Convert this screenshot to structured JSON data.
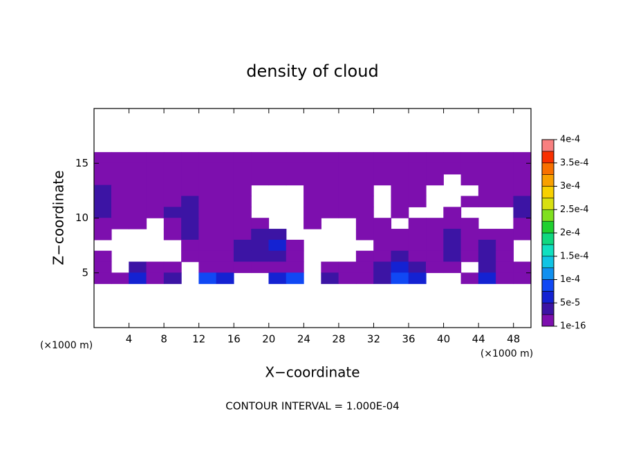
{
  "chart_data": {
    "type": "contour",
    "title": "density of cloud",
    "x_label": "X−coordinate",
    "y_label": "Z−coordinate",
    "x_unit": "(×1000 m)",
    "y_unit": "(×1000 m)",
    "note": "CONTOUR INTERVAL = 1.000E-04",
    "xlim": [
      0,
      50
    ],
    "ylim": [
      0,
      20
    ],
    "xticks": [
      4,
      8,
      12,
      16,
      20,
      24,
      28,
      32,
      36,
      40,
      44,
      48
    ],
    "yticks": [
      5,
      10,
      15
    ],
    "x": [
      1,
      3,
      5,
      7,
      9,
      11,
      13,
      15,
      17,
      19,
      21,
      23,
      25,
      27,
      29,
      31,
      33,
      35,
      37,
      39,
      41,
      43,
      45,
      47,
      49
    ],
    "z_levels": [
      15.5,
      14.5,
      13.5,
      12.5,
      11.5,
      10.5,
      9.5,
      8.5,
      7.5,
      6.5,
      5.5,
      4.5
    ],
    "z": [
      [
        1e-16,
        1e-16,
        1e-16,
        1e-16,
        1e-16,
        1e-16,
        1e-16,
        1e-16,
        1e-16,
        1e-16,
        1e-16,
        1e-16,
        1e-16,
        1e-16,
        1e-16,
        1e-16,
        1e-16,
        1e-16,
        1e-16,
        1e-16,
        1e-16,
        1e-16,
        1e-16,
        1e-16,
        1e-16
      ],
      [
        1e-16,
        1e-16,
        1e-16,
        1e-16,
        1e-16,
        1e-16,
        1e-16,
        1e-16,
        1e-16,
        1e-16,
        1e-16,
        1e-16,
        1e-16,
        1e-16,
        1e-16,
        1e-16,
        1e-16,
        1e-16,
        1e-16,
        1e-16,
        1e-16,
        1e-16,
        1e-16,
        1e-16,
        1e-16
      ],
      [
        1e-16,
        1e-16,
        1e-16,
        1e-16,
        1e-16,
        1e-16,
        1e-16,
        1e-16,
        1e-16,
        1e-16,
        1e-16,
        1e-16,
        1e-16,
        1e-16,
        1e-16,
        1e-16,
        1e-16,
        1e-16,
        1e-16,
        1e-16,
        null,
        1e-16,
        1e-16,
        1e-16,
        1e-16
      ],
      [
        3e-05,
        1e-16,
        1e-16,
        1e-16,
        1e-16,
        1e-16,
        1e-16,
        1e-16,
        1e-16,
        null,
        null,
        null,
        1e-16,
        1e-16,
        1e-16,
        1e-16,
        null,
        1e-16,
        1e-16,
        null,
        null,
        null,
        1e-16,
        1e-16,
        1e-16
      ],
      [
        3e-05,
        1e-16,
        1e-16,
        1e-16,
        1e-16,
        3e-05,
        1e-16,
        1e-16,
        1e-16,
        null,
        null,
        null,
        1e-16,
        1e-16,
        1e-16,
        1e-16,
        null,
        1e-16,
        1e-16,
        null,
        null,
        1e-16,
        1e-16,
        1e-16,
        3e-05
      ],
      [
        3e-05,
        1e-16,
        1e-16,
        1e-16,
        3e-05,
        3e-05,
        1e-16,
        1e-16,
        1e-16,
        null,
        null,
        null,
        1e-16,
        1e-16,
        1e-16,
        1e-16,
        null,
        1e-16,
        null,
        null,
        1e-16,
        null,
        null,
        null,
        3e-05
      ],
      [
        1e-16,
        1e-16,
        1e-16,
        null,
        1e-16,
        3e-05,
        1e-16,
        1e-16,
        1e-16,
        1e-16,
        null,
        null,
        1e-16,
        null,
        null,
        1e-16,
        1e-16,
        null,
        1e-16,
        1e-16,
        1e-16,
        1e-16,
        null,
        null,
        1e-16
      ],
      [
        1e-16,
        null,
        null,
        null,
        1e-16,
        3e-05,
        1e-16,
        1e-16,
        1e-16,
        3e-05,
        3e-05,
        null,
        null,
        null,
        null,
        1e-16,
        1e-16,
        1e-16,
        1e-16,
        1e-16,
        3e-05,
        1e-16,
        1e-16,
        1e-16,
        1e-16
      ],
      [
        null,
        null,
        null,
        null,
        null,
        1e-16,
        1e-16,
        1e-16,
        3e-05,
        3e-05,
        6e-05,
        1e-16,
        null,
        null,
        null,
        null,
        1e-16,
        1e-16,
        1e-16,
        1e-16,
        3e-05,
        1e-16,
        3e-05,
        1e-16,
        null
      ],
      [
        1e-16,
        null,
        null,
        null,
        null,
        1e-16,
        1e-16,
        1e-16,
        3e-05,
        3e-05,
        3e-05,
        1e-16,
        null,
        null,
        null,
        1e-16,
        1e-16,
        3e-05,
        1e-16,
        1e-16,
        3e-05,
        1e-16,
        3e-05,
        1e-16,
        null
      ],
      [
        1e-16,
        null,
        3e-05,
        1e-16,
        1e-16,
        null,
        1e-16,
        1e-16,
        1e-16,
        1e-16,
        1e-16,
        1e-16,
        null,
        1e-16,
        1e-16,
        1e-16,
        3e-05,
        6e-05,
        3e-05,
        1e-16,
        1e-16,
        null,
        3e-05,
        1e-16,
        1e-16
      ],
      [
        1e-16,
        1e-16,
        6e-05,
        1e-16,
        3e-05,
        null,
        8e-05,
        6e-05,
        null,
        null,
        6e-05,
        8e-05,
        null,
        3e-05,
        1e-16,
        1e-16,
        3e-05,
        8e-05,
        6e-05,
        null,
        null,
        1e-16,
        6e-05,
        1e-16,
        1e-16
      ]
    ],
    "colorbar": {
      "levels": [
        1e-16,
        2.5e-05,
        5e-05,
        7.5e-05,
        0.0001,
        0.000125,
        0.00015,
        0.000175,
        0.0002,
        0.000225,
        0.00025,
        0.000275,
        0.0003,
        0.000325,
        0.00035,
        0.000375,
        0.0004
      ],
      "colors": [
        "#7d0fae",
        "#3c14a4",
        "#1422d2",
        "#1048f4",
        "#1090f0",
        "#10c4e4",
        "#10e0c0",
        "#10d880",
        "#20d030",
        "#80e020",
        "#d8e010",
        "#f8d000",
        "#f8a000",
        "#f87000",
        "#f83000",
        "#f88080"
      ],
      "ticks": [
        {
          "value": 1e-16,
          "label": "1e-16"
        },
        {
          "value": 5e-05,
          "label": "5e-5"
        },
        {
          "value": 0.0001,
          "label": "1e-4"
        },
        {
          "value": 0.00015,
          "label": "1.5e-4"
        },
        {
          "value": 0.0002,
          "label": "2e-4"
        },
        {
          "value": 0.00025,
          "label": "2.5e-4"
        },
        {
          "value": 0.0003,
          "label": "3e-4"
        },
        {
          "value": 0.00035,
          "label": "3.5e-4"
        },
        {
          "value": 0.0004,
          "label": "4e-4"
        }
      ]
    }
  }
}
